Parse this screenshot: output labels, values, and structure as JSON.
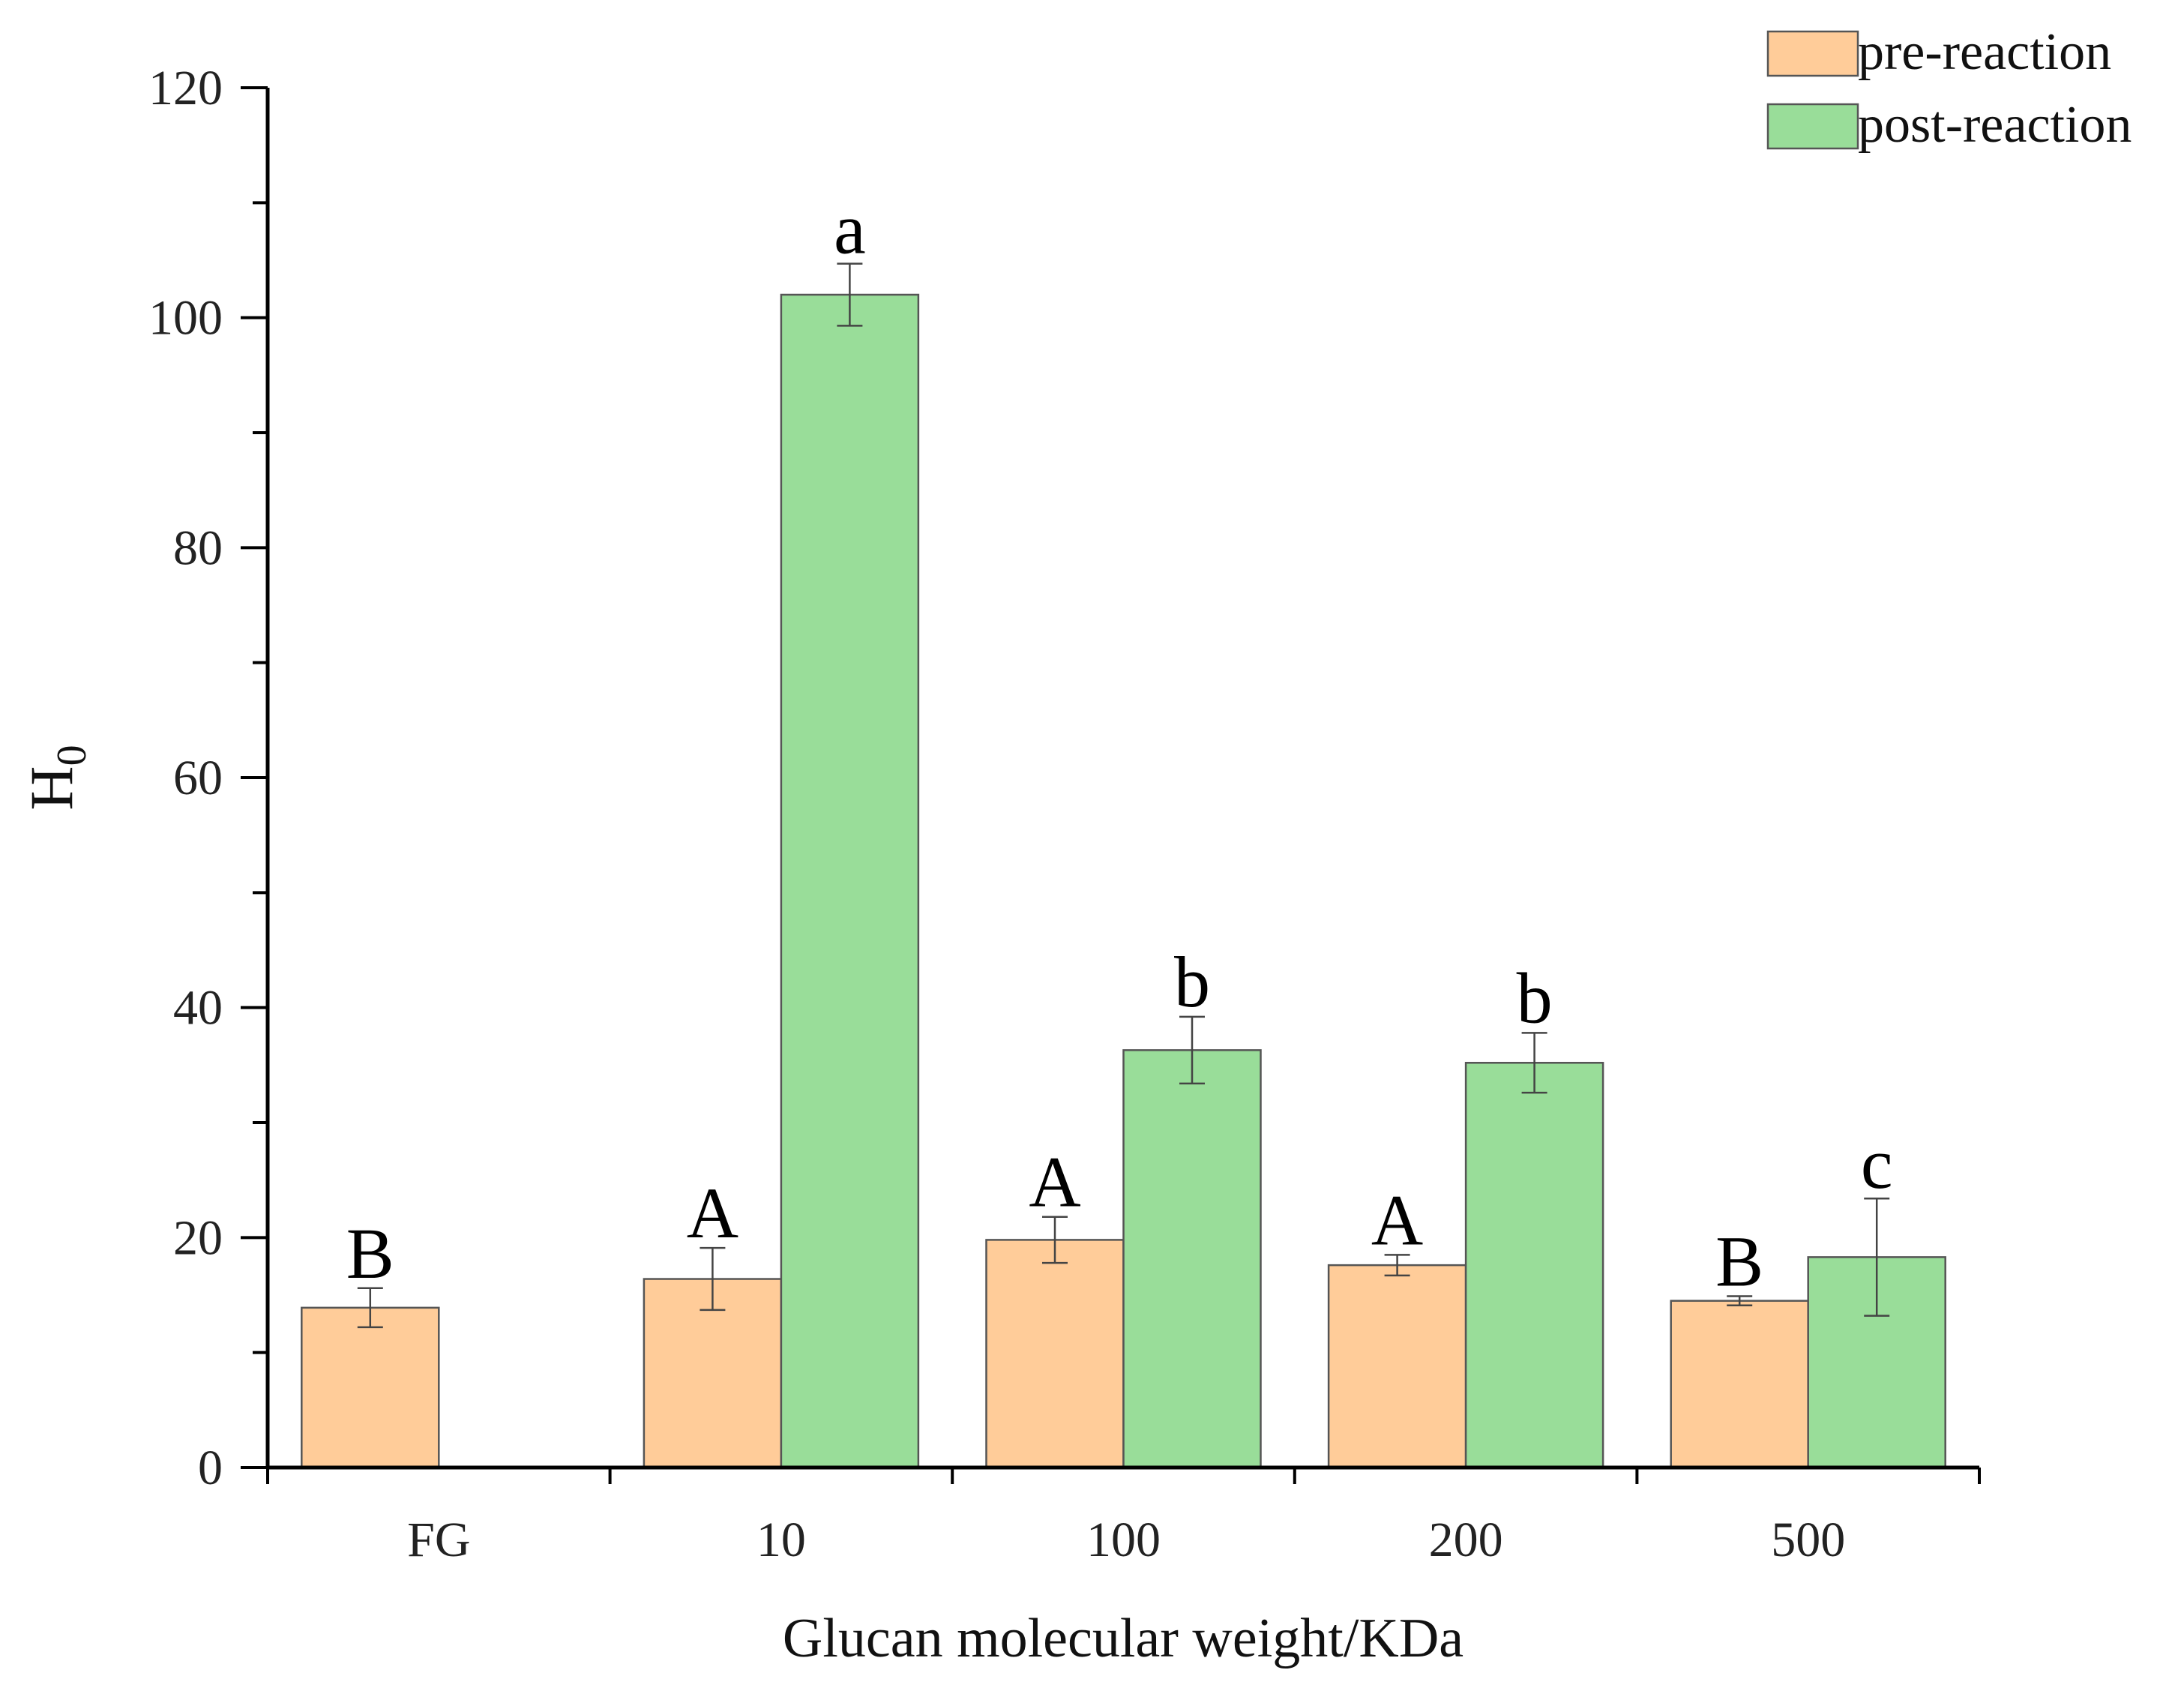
{
  "chart_data": {
    "type": "bar",
    "title": "",
    "xlabel": "Glucan molecular weight/KDa",
    "ylabel": "H",
    "ylabel_subscript": "0",
    "ylim": [
      0,
      120
    ],
    "yticks": [
      0,
      20,
      40,
      60,
      80,
      100,
      120
    ],
    "categories": [
      "FG",
      "10",
      "100",
      "200",
      "500"
    ],
    "series": [
      {
        "name": "pre-reaction",
        "color": "#ffcc99",
        "values": [
          13.9,
          16.4,
          19.8,
          17.6,
          14.5
        ],
        "errors": [
          1.7,
          2.7,
          2.0,
          0.9,
          0.4
        ],
        "labels": [
          "B",
          "A",
          "A",
          "A",
          "B"
        ]
      },
      {
        "name": "post-reaction",
        "color": "#99dd99",
        "values": [
          null,
          102.0,
          36.3,
          35.2,
          18.3
        ],
        "errors": [
          null,
          2.7,
          2.9,
          2.6,
          5.1
        ],
        "labels": [
          "",
          "a",
          "b",
          "b",
          "c"
        ]
      }
    ],
    "legend_position": "top-right",
    "grid": false
  }
}
